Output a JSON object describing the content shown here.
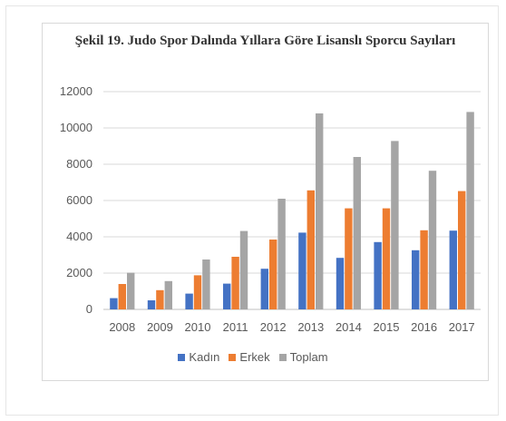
{
  "chart_data": {
    "type": "bar",
    "title": "Şekil 19. Judo Spor Dalında Yıllara Göre Lisanslı Sporcu Sayıları",
    "categories": [
      "2008",
      "2009",
      "2010",
      "2011",
      "2012",
      "2013",
      "2014",
      "2015",
      "2016",
      "2017"
    ],
    "series": [
      {
        "name": "Kadın",
        "color": "#4472c4",
        "values": [
          620,
          500,
          870,
          1420,
          2240,
          4230,
          2840,
          3710,
          3260,
          4340
        ]
      },
      {
        "name": "Erkek",
        "color": "#ed7d31",
        "values": [
          1400,
          1060,
          1880,
          2900,
          3850,
          6560,
          5570,
          5570,
          4360,
          6520
        ]
      },
      {
        "name": "Toplam",
        "color": "#a5a5a5",
        "values": [
          2020,
          1560,
          2750,
          4320,
          6100,
          10800,
          8400,
          9280,
          7640,
          10880
        ]
      }
    ],
    "yticks": [
      "0",
      "2000",
      "4000",
      "6000",
      "8000",
      "10000",
      "12000"
    ],
    "ylim": [
      0,
      12000
    ],
    "grid": true,
    "legend_position": "bottom"
  }
}
